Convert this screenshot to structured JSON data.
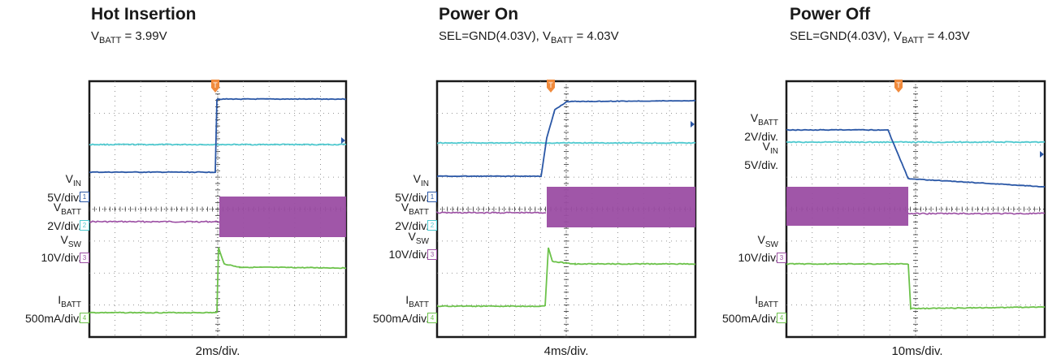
{
  "chart_data": [
    {
      "type": "line",
      "title": "Hot Insertion",
      "subtitle": {
        "pre": "V",
        "sub": "BATT",
        "post": " = 3.99V"
      },
      "xlabel": "2ms/div.",
      "x_divisions": 10,
      "y_divisions": 8,
      "trigger_div": 5.0,
      "series": [
        {
          "label": "VIN",
          "label_parts": [
            "V",
            "IN"
          ],
          "scale": "5V/div.",
          "marker": "1",
          "color": "#2a57a6",
          "label_div": 3.5
        },
        {
          "label": "VBATT",
          "label_parts": [
            "V",
            "BATT"
          ],
          "scale": "2V/div.",
          "marker": "2",
          "color": "#4fc9cf",
          "label_div": 4.4
        },
        {
          "label": "VSW",
          "label_parts": [
            "V",
            "SW"
          ],
          "scale": "10V/div.",
          "marker": "3",
          "color": "#9b4da3",
          "label_div": 5.4
        },
        {
          "label": "IBATT",
          "label_parts": [
            "I",
            "BATT"
          ],
          "scale": "500mA/div.",
          "marker": "4",
          "color": "#6cc24a",
          "label_div": 7.3
        }
      ]
    },
    {
      "type": "line",
      "title": "Power On",
      "subtitle": {
        "pre": "SEL=GND(4.03V), V",
        "sub": "BATT",
        "post": " = 4.03V"
      },
      "xlabel": "4ms/div.",
      "x_divisions": 10,
      "y_divisions": 8,
      "trigger_div": 4.3,
      "series": [
        {
          "label": "VIN",
          "label_parts": [
            "V",
            "IN"
          ],
          "scale": "5V/div.",
          "marker": "1",
          "color": "#2a57a6",
          "label_div": 3.5
        },
        {
          "label": "VBATT",
          "label_parts": [
            "V",
            "BATT"
          ],
          "scale": "2V/div.",
          "marker": "2",
          "color": "#4fc9cf",
          "label_div": 4.4
        },
        {
          "label": "VSW",
          "label_parts": [
            "V",
            "SW"
          ],
          "scale": "10V/div.",
          "marker": "3",
          "color": "#9b4da3",
          "label_div": 5.3
        },
        {
          "label": "IBATT",
          "label_parts": [
            "I",
            "BATT"
          ],
          "scale": "500mA/div.",
          "marker": "4",
          "color": "#6cc24a",
          "label_div": 7.3
        }
      ]
    },
    {
      "type": "line",
      "title": "Power Off",
      "subtitle": {
        "pre": "SEL=GND(4.03V), V",
        "sub": "BATT",
        "post": " = 4.03V"
      },
      "xlabel": "10ms/div.",
      "x_divisions": 10,
      "y_divisions": 8,
      "trigger_div": 4.7,
      "series": [
        {
          "label": "VBATT",
          "label_parts": [
            "V",
            "BATT"
          ],
          "scale": "2V/div.",
          "marker": "",
          "color": "#2a57a6",
          "label_div": 1.6
        },
        {
          "label": "VIN",
          "label_parts": [
            "V",
            "IN"
          ],
          "scale": "5V/div.",
          "marker": "",
          "color": "#4fc9cf",
          "label_div": 2.5
        },
        {
          "label": "VSW",
          "label_parts": [
            "V",
            "SW"
          ],
          "scale": "10V/div.",
          "marker": "3",
          "color": "#9b4da3",
          "label_div": 5.4
        },
        {
          "label": "IBATT",
          "label_parts": [
            "I",
            "BATT"
          ],
          "scale": "500mA/div.",
          "marker": "4",
          "color": "#6cc24a",
          "label_div": 7.3
        }
      ]
    }
  ]
}
